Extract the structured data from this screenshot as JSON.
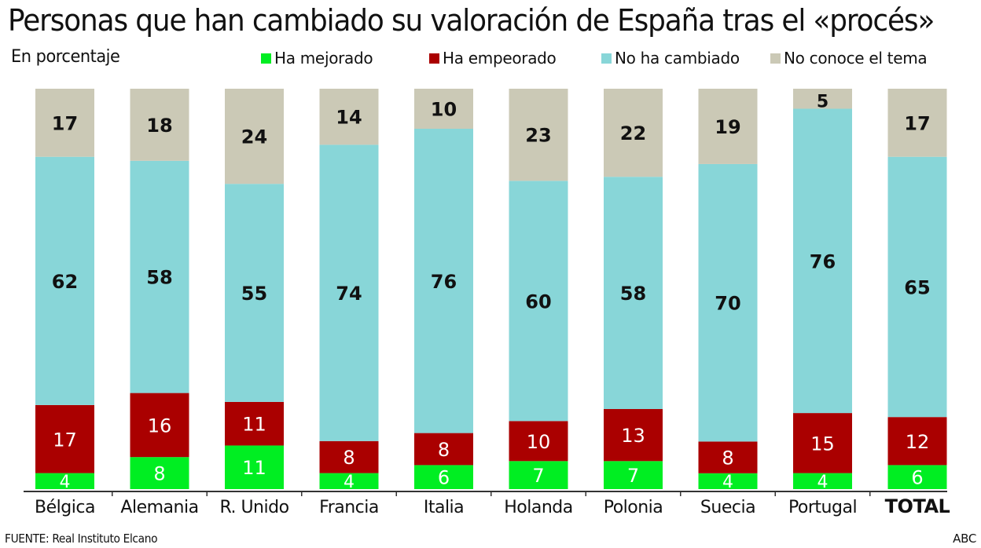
{
  "header": {
    "title": "Personas que han cambiado su valoración de España tras el «procés»",
    "subtitle": "En porcentaje"
  },
  "legend": [
    {
      "label": "Ha mejorado",
      "color": "#00ee22"
    },
    {
      "label": "Ha empeorado",
      "color": "#aa0000"
    },
    {
      "label": "No ha cambiado",
      "color": "#88d6d8"
    },
    {
      "label": "No conoce el tema",
      "color": "#cbc9b6"
    }
  ],
  "footer": {
    "source": "FUENTE: Real Instituto Elcano",
    "credit": "ABC"
  },
  "chart_data": {
    "type": "bar",
    "stacked": true,
    "title": "Personas que han cambiado su valoración de España tras el «procés»",
    "subtitle": "En porcentaje",
    "xlabel": "",
    "ylabel": "",
    "ylim": [
      0,
      100
    ],
    "grid": false,
    "legend_position": "top",
    "categories": [
      "Bélgica",
      "Alemania",
      "R. Unido",
      "Francia",
      "Italia",
      "Holanda",
      "Polonia",
      "Suecia",
      "Portugal",
      "TOTAL"
    ],
    "bold_categories": [
      "TOTAL"
    ],
    "series": [
      {
        "name": "Ha mejorado",
        "color": "#00ee22",
        "label_color": "#ffffff",
        "values": [
          4,
          8,
          11,
          4,
          6,
          7,
          7,
          4,
          4,
          6
        ]
      },
      {
        "name": "Ha empeorado",
        "color": "#aa0000",
        "label_color": "#ffffff",
        "values": [
          17,
          16,
          11,
          8,
          8,
          10,
          13,
          8,
          15,
          12
        ]
      },
      {
        "name": "No ha cambiado",
        "color": "#88d6d8",
        "label_color": "#111111",
        "values": [
          62,
          58,
          55,
          74,
          76,
          60,
          58,
          70,
          76,
          65
        ]
      },
      {
        "name": "No conoce el tema",
        "color": "#cbc9b6",
        "label_color": "#111111",
        "values": [
          17,
          18,
          24,
          14,
          10,
          23,
          22,
          19,
          5,
          17
        ]
      }
    ]
  }
}
